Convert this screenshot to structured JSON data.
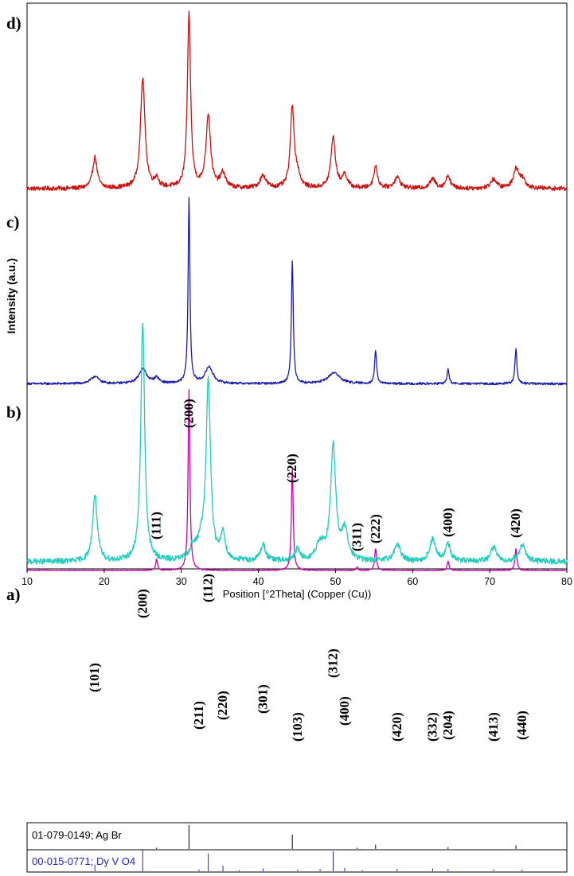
{
  "chart_data": {
    "type": "line",
    "xlabel": "Position [°2Theta] (Copper (Cu))",
    "ylabel": "Intensity (a.u.)",
    "xlim": [
      10,
      80
    ],
    "xticks": [
      10,
      20,
      30,
      40,
      50,
      60,
      70,
      80
    ],
    "series": [
      {
        "name": "d)",
        "color": "#cc1111",
        "baseline": 0.03,
        "noise": 0.012,
        "peaks": [
          {
            "x": 18.8,
            "h": 0.17,
            "w": 0.35
          },
          {
            "x": 25.0,
            "h": 0.6,
            "w": 0.35
          },
          {
            "x": 26.8,
            "h": 0.05,
            "w": 0.3
          },
          {
            "x": 31.0,
            "h": 0.95,
            "w": 0.25
          },
          {
            "x": 33.5,
            "h": 0.4,
            "w": 0.35
          },
          {
            "x": 35.4,
            "h": 0.08,
            "w": 0.4
          },
          {
            "x": 40.6,
            "h": 0.07,
            "w": 0.45
          },
          {
            "x": 44.4,
            "h": 0.44,
            "w": 0.3
          },
          {
            "x": 45.1,
            "h": 0.06,
            "w": 0.4
          },
          {
            "x": 49.7,
            "h": 0.28,
            "w": 0.35
          },
          {
            "x": 51.2,
            "h": 0.07,
            "w": 0.4
          },
          {
            "x": 55.2,
            "h": 0.12,
            "w": 0.3
          },
          {
            "x": 58.0,
            "h": 0.06,
            "w": 0.45
          },
          {
            "x": 62.6,
            "h": 0.05,
            "w": 0.45
          },
          {
            "x": 64.6,
            "h": 0.07,
            "w": 0.35
          },
          {
            "x": 70.5,
            "h": 0.05,
            "w": 0.45
          },
          {
            "x": 73.4,
            "h": 0.1,
            "w": 0.4
          },
          {
            "x": 74.2,
            "h": 0.05,
            "w": 0.5
          }
        ]
      },
      {
        "name": "c)",
        "color": "#1a1aaa",
        "baseline": 0.02,
        "noise": 0.006,
        "peaks": [
          {
            "x": 18.8,
            "h": 0.04,
            "w": 0.6
          },
          {
            "x": 25.0,
            "h": 0.08,
            "w": 0.6
          },
          {
            "x": 26.8,
            "h": 0.03,
            "w": 0.4
          },
          {
            "x": 31.0,
            "h": 1.0,
            "w": 0.14
          },
          {
            "x": 33.6,
            "h": 0.09,
            "w": 0.6
          },
          {
            "x": 44.4,
            "h": 0.66,
            "w": 0.15
          },
          {
            "x": 49.8,
            "h": 0.06,
            "w": 0.9
          },
          {
            "x": 55.2,
            "h": 0.18,
            "w": 0.15
          },
          {
            "x": 64.6,
            "h": 0.08,
            "w": 0.15
          },
          {
            "x": 73.4,
            "h": 0.19,
            "w": 0.15
          }
        ]
      },
      {
        "name": "b)",
        "color": "#cc00aa",
        "baseline": 0.0,
        "noise": 0.003,
        "peaks": [
          {
            "x": 26.8,
            "h": 0.06,
            "w": 0.15
          },
          {
            "x": 31.0,
            "h": 1.0,
            "w": 0.14
          },
          {
            "x": 44.4,
            "h": 0.57,
            "w": 0.14
          },
          {
            "x": 52.8,
            "h": 0.02,
            "w": 0.15
          },
          {
            "x": 55.2,
            "h": 0.12,
            "w": 0.15
          },
          {
            "x": 64.6,
            "h": 0.05,
            "w": 0.15
          },
          {
            "x": 73.4,
            "h": 0.12,
            "w": 0.15
          }
        ]
      },
      {
        "name": "a)",
        "color": "#22ccbb",
        "baseline": 0.02,
        "noise": 0.012,
        "peaks": [
          {
            "x": 18.8,
            "h": 0.28,
            "w": 0.35
          },
          {
            "x": 25.0,
            "h": 1.0,
            "w": 0.3
          },
          {
            "x": 31.5,
            "h": 0.05,
            "w": 0.5
          },
          {
            "x": 32.5,
            "h": 0.06,
            "w": 0.5
          },
          {
            "x": 33.5,
            "h": 0.75,
            "w": 0.35
          },
          {
            "x": 35.4,
            "h": 0.11,
            "w": 0.35
          },
          {
            "x": 40.6,
            "h": 0.07,
            "w": 0.4
          },
          {
            "x": 45.1,
            "h": 0.05,
            "w": 0.35
          },
          {
            "x": 48.0,
            "h": 0.07,
            "w": 0.6
          },
          {
            "x": 49.7,
            "h": 0.48,
            "w": 0.4
          },
          {
            "x": 51.2,
            "h": 0.12,
            "w": 0.5
          },
          {
            "x": 58.0,
            "h": 0.07,
            "w": 0.5
          },
          {
            "x": 62.6,
            "h": 0.09,
            "w": 0.45
          },
          {
            "x": 64.6,
            "h": 0.07,
            "w": 0.4
          },
          {
            "x": 70.5,
            "h": 0.06,
            "w": 0.45
          },
          {
            "x": 74.2,
            "h": 0.07,
            "w": 0.5
          }
        ]
      }
    ],
    "annotations_b": [
      {
        "label": "(111)",
        "x": 26.8
      },
      {
        "label": "(200)",
        "x": 31.0
      },
      {
        "label": "(220)",
        "x": 44.4
      },
      {
        "label": "(311)",
        "x": 52.8
      },
      {
        "label": "(222)",
        "x": 55.2
      },
      {
        "label": "(400)",
        "x": 64.6
      },
      {
        "label": "(420)",
        "x": 73.4
      }
    ],
    "annotations_a": [
      {
        "label": "(101)",
        "x": 18.8
      },
      {
        "label": "(200)",
        "x": 25.0
      },
      {
        "label": "(211)",
        "x": 32.3
      },
      {
        "label": "(112)",
        "x": 33.5
      },
      {
        "label": "(220)",
        "x": 35.4
      },
      {
        "label": "(301)",
        "x": 40.6
      },
      {
        "label": "(103)",
        "x": 45.1
      },
      {
        "label": "(312)",
        "x": 49.7
      },
      {
        "label": "(400)",
        "x": 51.2
      },
      {
        "label": "(420)",
        "x": 58.0
      },
      {
        "label": "(332)",
        "x": 62.6
      },
      {
        "label": "(204)",
        "x": 64.6
      },
      {
        "label": "(413)",
        "x": 70.5
      },
      {
        "label": "(440)",
        "x": 74.2
      }
    ],
    "reference_patterns": [
      {
        "label": "01-079-0149; Ag Br",
        "color": "#000000",
        "lines": [
          {
            "x": 26.8,
            "h": 0.05
          },
          {
            "x": 31.0,
            "h": 1.0
          },
          {
            "x": 44.4,
            "h": 0.6
          },
          {
            "x": 52.8,
            "h": 0.05
          },
          {
            "x": 55.2,
            "h": 0.18
          },
          {
            "x": 64.6,
            "h": 0.08
          },
          {
            "x": 73.4,
            "h": 0.15
          }
        ]
      },
      {
        "label": "00-015-0771; Dy V O4",
        "color": "#2222cc",
        "lines": [
          {
            "x": 18.8,
            "h": 0.3
          },
          {
            "x": 25.0,
            "h": 1.0
          },
          {
            "x": 32.3,
            "h": 0.08
          },
          {
            "x": 33.5,
            "h": 0.8
          },
          {
            "x": 35.4,
            "h": 0.25
          },
          {
            "x": 37.5,
            "h": 0.05
          },
          {
            "x": 40.6,
            "h": 0.12
          },
          {
            "x": 45.1,
            "h": 0.08
          },
          {
            "x": 48.0,
            "h": 0.1
          },
          {
            "x": 49.7,
            "h": 0.9
          },
          {
            "x": 51.2,
            "h": 0.15
          },
          {
            "x": 53.5,
            "h": 0.05
          },
          {
            "x": 58.0,
            "h": 0.1
          },
          {
            "x": 62.6,
            "h": 0.12
          },
          {
            "x": 64.6,
            "h": 0.1
          },
          {
            "x": 70.5,
            "h": 0.08
          },
          {
            "x": 74.2,
            "h": 0.08
          }
        ]
      }
    ]
  }
}
